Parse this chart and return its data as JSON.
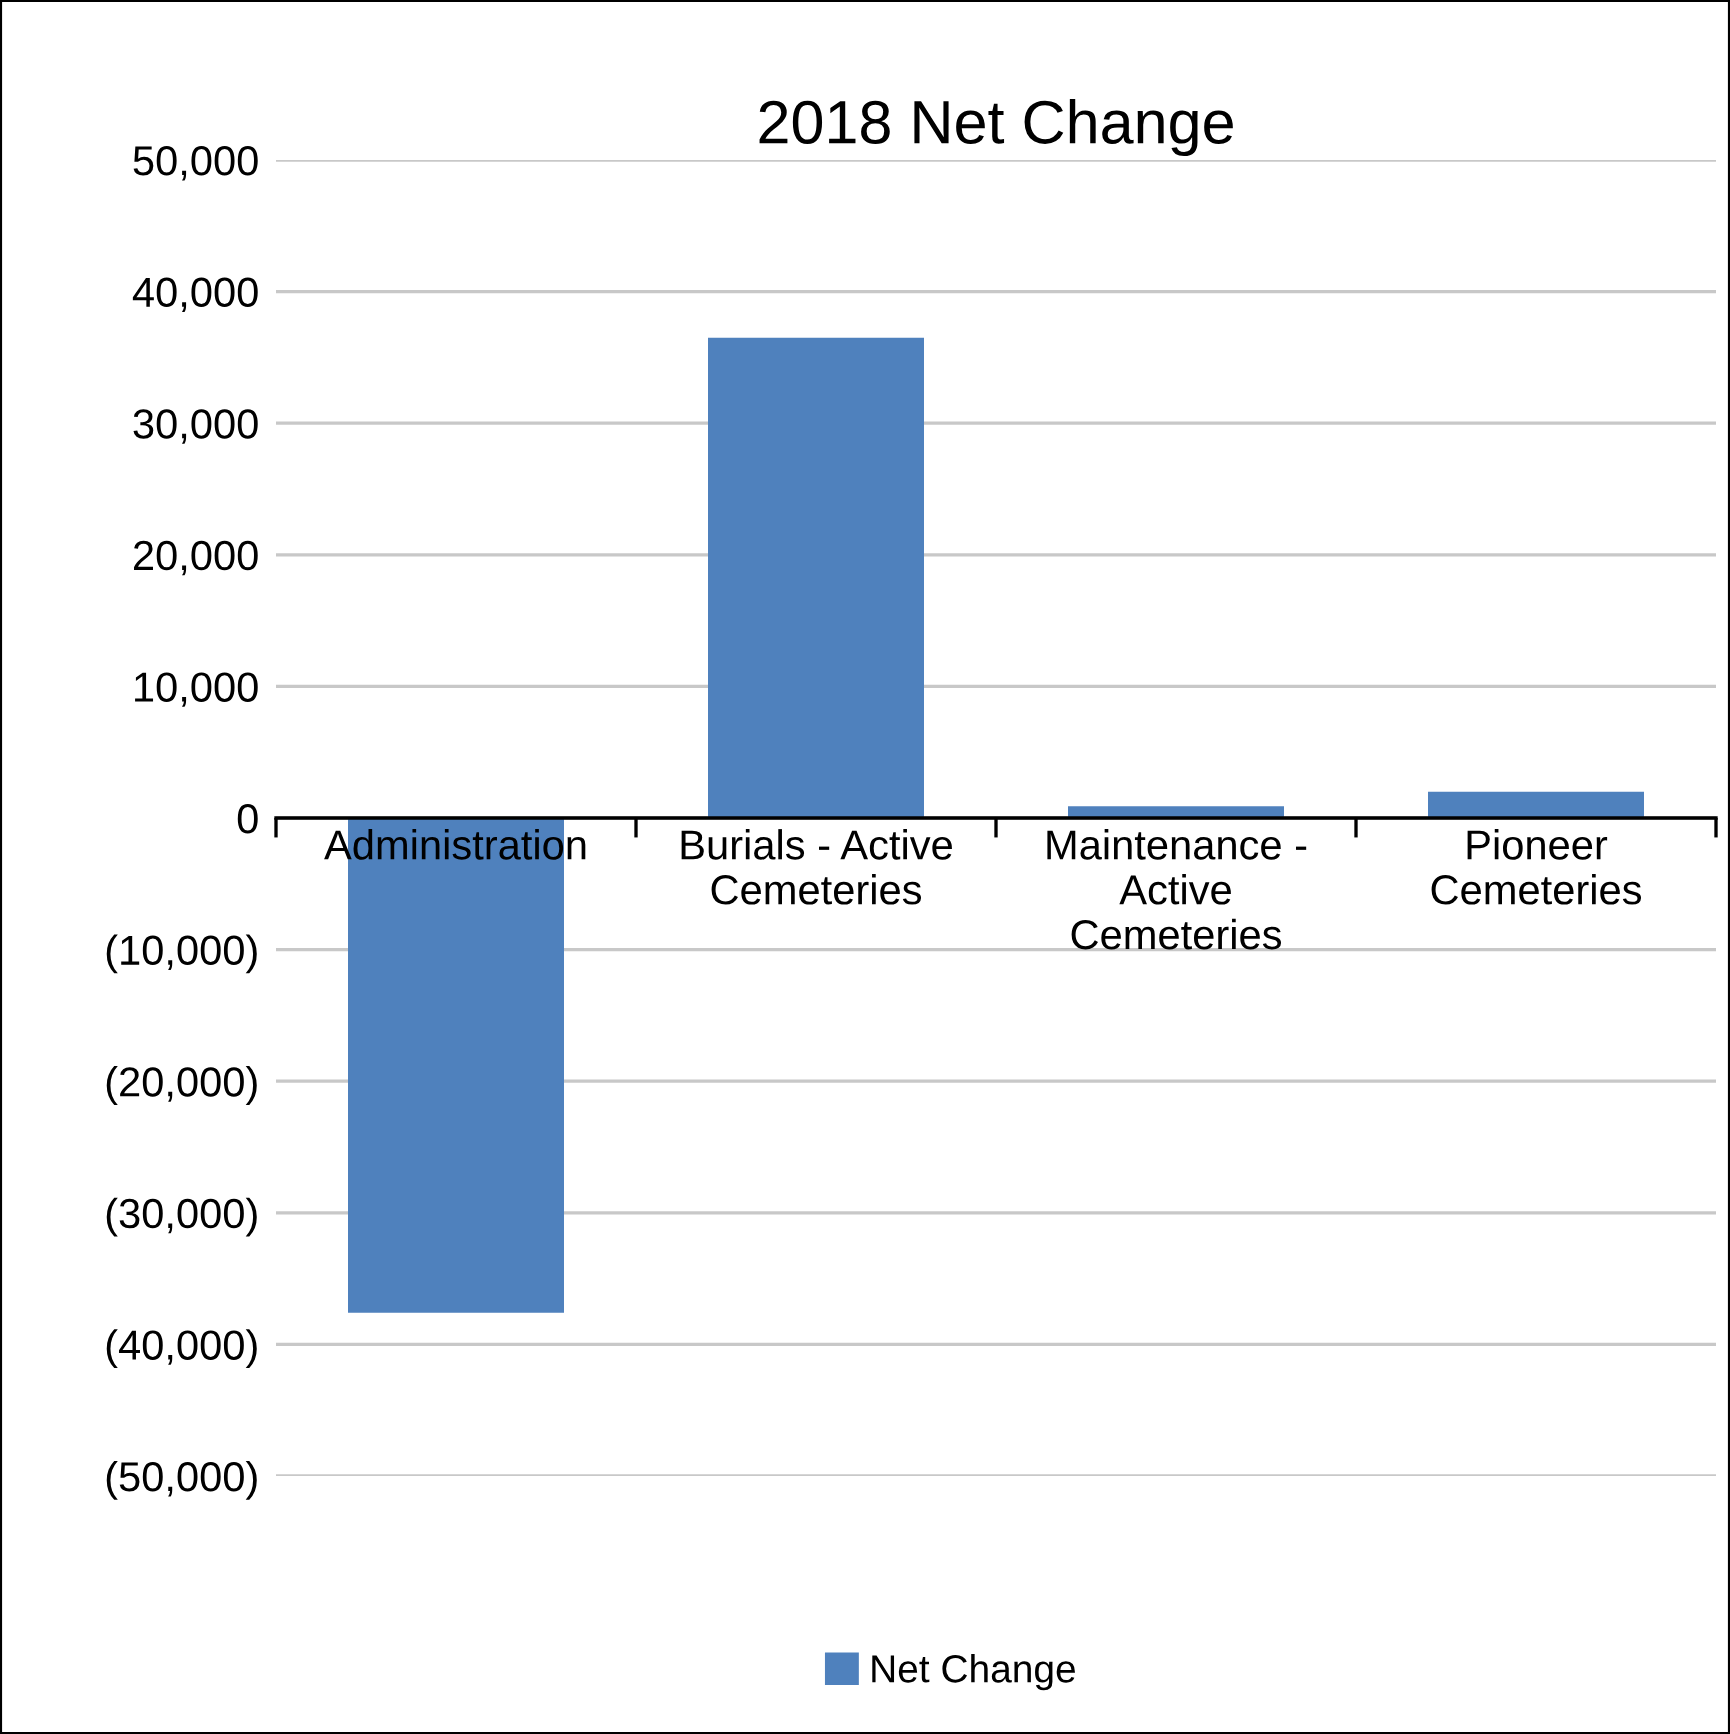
{
  "chart_data": {
    "type": "bar",
    "title": "2018 Net Change",
    "categories": [
      "Administration",
      "Burials - Active\nCemeteries",
      "Maintenance -\nActive\nCemeteries",
      "Pioneer\nCemeteries"
    ],
    "series": [
      {
        "name": "Net Change",
        "color": "#4f81bd",
        "values": [
          -37600,
          36500,
          900,
          2000
        ]
      }
    ],
    "ylim": [
      -50000,
      50000
    ],
    "yticks": [
      {
        "value": -50000,
        "label": "(50,000)"
      },
      {
        "value": -40000,
        "label": "(40,000)"
      },
      {
        "value": -30000,
        "label": "(30,000)"
      },
      {
        "value": -20000,
        "label": "(20,000)"
      },
      {
        "value": -10000,
        "label": "(10,000)"
      },
      0,
      {
        "value": 10000,
        "label": "10,000"
      },
      {
        "value": 20000,
        "label": "20,000"
      },
      {
        "value": 30000,
        "label": "30,000"
      },
      {
        "value": 40000,
        "label": "40,000"
      },
      {
        "value": 50000,
        "label": "50,000"
      }
    ],
    "grid": "y",
    "legend": "bottom"
  }
}
